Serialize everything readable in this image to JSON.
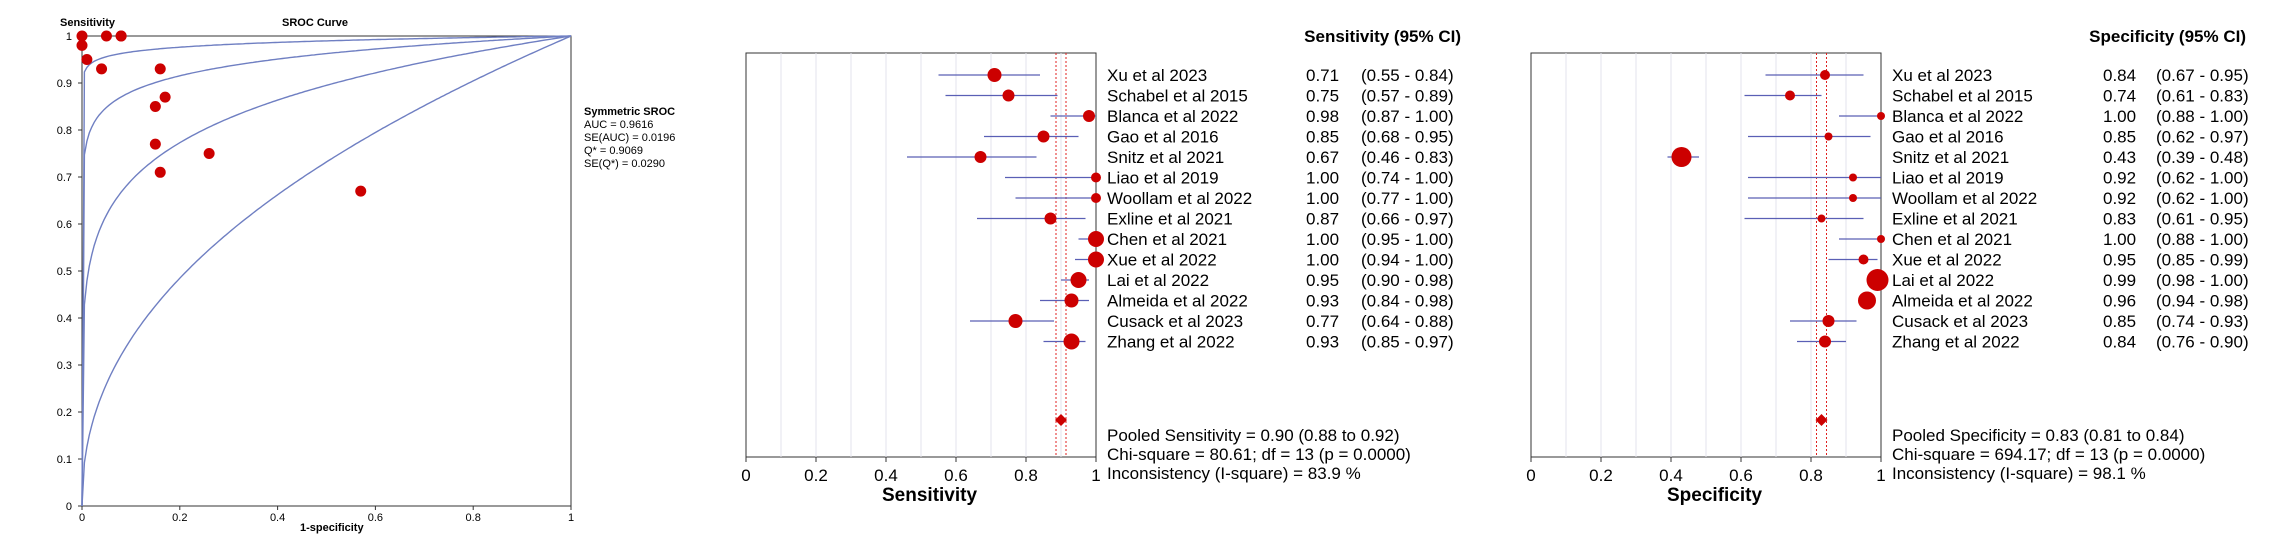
{
  "colors": {
    "point": "#cc0000",
    "ci_line": "#5a5fb5",
    "curve": "#6f7fc2",
    "pooled_line": "#e02020",
    "grid": "#e3e3ec"
  },
  "chart_data": [
    {
      "type": "scatter",
      "title": "SROC Curve",
      "ylabel": "Sensitivity",
      "xlabel": "1-specificity",
      "xlim": [
        0,
        1
      ],
      "ylim": [
        0,
        1
      ],
      "x_ticks": [
        "0",
        "0.2",
        "0.4",
        "0.6",
        "0.8",
        "1"
      ],
      "y_ticks": [
        "0",
        "0.1",
        "0.2",
        "0.3",
        "0.4",
        "0.5",
        "0.6",
        "0.7",
        "0.8",
        "0.9",
        "1"
      ],
      "points": [
        {
          "x": 0.16,
          "y": 0.71
        },
        {
          "x": 0.26,
          "y": 0.75
        },
        {
          "x": 0.0,
          "y": 0.98
        },
        {
          "x": 0.15,
          "y": 0.85
        },
        {
          "x": 0.57,
          "y": 0.67
        },
        {
          "x": 0.08,
          "y": 1.0
        },
        {
          "x": 0.08,
          "y": 1.0
        },
        {
          "x": 0.17,
          "y": 0.87
        },
        {
          "x": 0.0,
          "y": 1.0
        },
        {
          "x": 0.05,
          "y": 1.0
        },
        {
          "x": 0.01,
          "y": 0.95
        },
        {
          "x": 0.04,
          "y": 0.93
        },
        {
          "x": 0.15,
          "y": 0.77
        },
        {
          "x": 0.16,
          "y": 0.93
        }
      ],
      "legend": {
        "title": "Symmetric SROC",
        "lines": [
          "AUC = 0.9616",
          "SE(AUC) = 0.0196",
          "Q* = 0.9069",
          "SE(Q*) = 0.0290"
        ]
      }
    },
    {
      "type": "forest",
      "axis_title": "Sensitivity",
      "header": "Sensitivity (95% CI)",
      "xlim": [
        0,
        1
      ],
      "x_ticks": [
        "0",
        "0.2",
        "0.4",
        "0.6",
        "0.8",
        "1"
      ],
      "pooled": 0.9,
      "studies": [
        {
          "label": "Xu et al 2023",
          "value": 0.71,
          "lo": 0.55,
          "hi": 0.84,
          "value_text": "0.71",
          "ci_text": "(0.55 - 0.84)",
          "w": 7
        },
        {
          "label": "Schabel et al 2015",
          "value": 0.75,
          "lo": 0.57,
          "hi": 0.89,
          "value_text": "0.75",
          "ci_text": "(0.57 - 0.89)",
          "w": 6
        },
        {
          "label": "Blanca et al 2022",
          "value": 0.98,
          "lo": 0.87,
          "hi": 1.0,
          "value_text": "0.98",
          "ci_text": "(0.87 - 1.00)",
          "w": 6
        },
        {
          "label": "Gao et al 2016",
          "value": 0.85,
          "lo": 0.68,
          "hi": 0.95,
          "value_text": "0.85",
          "ci_text": "(0.68 - 0.95)",
          "w": 6
        },
        {
          "label": "Snitz et al 2021",
          "value": 0.67,
          "lo": 0.46,
          "hi": 0.83,
          "value_text": "0.67",
          "ci_text": "(0.46 - 0.83)",
          "w": 6
        },
        {
          "label": "Liao et al 2019",
          "value": 1.0,
          "lo": 0.74,
          "hi": 1.0,
          "value_text": "1.00",
          "ci_text": "(0.74 - 1.00)",
          "w": 5
        },
        {
          "label": "Woollam et al 2022",
          "value": 1.0,
          "lo": 0.77,
          "hi": 1.0,
          "value_text": "1.00",
          "ci_text": "(0.77 - 1.00)",
          "w": 5
        },
        {
          "label": "Exline et al 2021",
          "value": 0.87,
          "lo": 0.66,
          "hi": 0.97,
          "value_text": "0.87",
          "ci_text": "(0.66 - 0.97)",
          "w": 6
        },
        {
          "label": "Chen et al 2021",
          "value": 1.0,
          "lo": 0.95,
          "hi": 1.0,
          "value_text": "1.00",
          "ci_text": "(0.95 - 1.00)",
          "w": 8
        },
        {
          "label": "Xue et al 2022",
          "value": 1.0,
          "lo": 0.94,
          "hi": 1.0,
          "value_text": "1.00",
          "ci_text": "(0.94 - 1.00)",
          "w": 8
        },
        {
          "label": "Lai et al 2022",
          "value": 0.95,
          "lo": 0.9,
          "hi": 0.98,
          "value_text": "0.95",
          "ci_text": "(0.90 - 0.98)",
          "w": 8
        },
        {
          "label": "Almeida et al 2022",
          "value": 0.93,
          "lo": 0.84,
          "hi": 0.98,
          "value_text": "0.93",
          "ci_text": "(0.84 - 0.98)",
          "w": 7
        },
        {
          "label": "Cusack et al 2023",
          "value": 0.77,
          "lo": 0.64,
          "hi": 0.88,
          "value_text": "0.77",
          "ci_text": "(0.64 - 0.88)",
          "w": 7
        },
        {
          "label": "Zhang et al 2022",
          "value": 0.93,
          "lo": 0.85,
          "hi": 0.97,
          "value_text": "0.93",
          "ci_text": "(0.85 - 0.97)",
          "w": 8
        }
      ],
      "summary_lines": [
        "Pooled Sensitivity = 0.90 (0.88 to 0.92)",
        "Chi-square = 80.61; df = 13 (p = 0.0000)",
        "Inconsistency (I-square) = 83.9 %"
      ]
    },
    {
      "type": "forest",
      "axis_title": "Specificity",
      "header": "Specificity (95% CI)",
      "xlim": [
        0,
        1
      ],
      "x_ticks": [
        "0",
        "0.2",
        "0.4",
        "0.6",
        "0.8",
        "1"
      ],
      "pooled": 0.83,
      "studies": [
        {
          "label": "Xu et al 2023",
          "value": 0.84,
          "lo": 0.67,
          "hi": 0.95,
          "value_text": "0.84",
          "ci_text": "(0.67 - 0.95)",
          "w": 5
        },
        {
          "label": "Schabel et al 2015",
          "value": 0.74,
          "lo": 0.61,
          "hi": 0.83,
          "value_text": "0.74",
          "ci_text": "(0.61 - 0.83)",
          "w": 5
        },
        {
          "label": "Blanca et al 2022",
          "value": 1.0,
          "lo": 0.88,
          "hi": 1.0,
          "value_text": "1.00",
          "ci_text": "(0.88 - 1.00)",
          "w": 4
        },
        {
          "label": "Gao et al 2016",
          "value": 0.85,
          "lo": 0.62,
          "hi": 0.97,
          "value_text": "0.85",
          "ci_text": "(0.62 - 0.97)",
          "w": 4
        },
        {
          "label": "Snitz et al 2021",
          "value": 0.43,
          "lo": 0.39,
          "hi": 0.48,
          "value_text": "0.43",
          "ci_text": "(0.39 - 0.48)",
          "w": 10
        },
        {
          "label": "Liao et al 2019",
          "value": 0.92,
          "lo": 0.62,
          "hi": 1.0,
          "value_text": "0.92",
          "ci_text": "(0.62 - 1.00)",
          "w": 4
        },
        {
          "label": "Woollam et al 2022",
          "value": 0.92,
          "lo": 0.62,
          "hi": 1.0,
          "value_text": "0.92",
          "ci_text": "(0.62 - 1.00)",
          "w": 4
        },
        {
          "label": "Exline et al 2021",
          "value": 0.83,
          "lo": 0.61,
          "hi": 0.95,
          "value_text": "0.83",
          "ci_text": "(0.61 - 0.95)",
          "w": 4
        },
        {
          "label": "Chen et al 2021",
          "value": 1.0,
          "lo": 0.88,
          "hi": 1.0,
          "value_text": "1.00",
          "ci_text": "(0.88 - 1.00)",
          "w": 4
        },
        {
          "label": "Xue et al 2022",
          "value": 0.95,
          "lo": 0.85,
          "hi": 0.99,
          "value_text": "0.95",
          "ci_text": "(0.85 - 0.99)",
          "w": 5
        },
        {
          "label": "Lai et al 2022",
          "value": 0.99,
          "lo": 0.98,
          "hi": 1.0,
          "value_text": "0.99",
          "ci_text": "(0.98 - 1.00)",
          "w": 11
        },
        {
          "label": "Almeida et al 2022",
          "value": 0.96,
          "lo": 0.94,
          "hi": 0.98,
          "value_text": "0.96",
          "ci_text": "(0.94 - 0.98)",
          "w": 9
        },
        {
          "label": "Cusack et al 2023",
          "value": 0.85,
          "lo": 0.74,
          "hi": 0.93,
          "value_text": "0.85",
          "ci_text": "(0.74 - 0.93)",
          "w": 6
        },
        {
          "label": "Zhang et al 2022",
          "value": 0.84,
          "lo": 0.76,
          "hi": 0.9,
          "value_text": "0.84",
          "ci_text": "(0.76 - 0.90)",
          "w": 6
        }
      ],
      "summary_lines": [
        "Pooled Specificity = 0.83 (0.81 to 0.84)",
        "Chi-square = 694.17; df = 13 (p = 0.0000)",
        "Inconsistency (I-square) = 98.1 %"
      ]
    }
  ]
}
